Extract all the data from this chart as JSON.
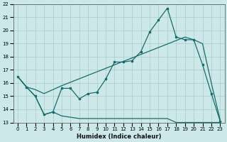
{
  "xlabel": "Humidex (Indice chaleur)",
  "bg_color": "#cce8e8",
  "grid_color": "#aacccc",
  "line_color": "#1a6b6b",
  "xlim": [
    -0.5,
    23.5
  ],
  "ylim": [
    13,
    22
  ],
  "xticks": [
    0,
    1,
    2,
    3,
    4,
    5,
    6,
    7,
    8,
    9,
    10,
    11,
    12,
    13,
    14,
    15,
    16,
    17,
    18,
    19,
    20,
    21,
    22,
    23
  ],
  "yticks": [
    13,
    14,
    15,
    16,
    17,
    18,
    19,
    20,
    21,
    22
  ],
  "line1_x": [
    0,
    1,
    2,
    3,
    4,
    5,
    6,
    7,
    8,
    9,
    10,
    11,
    12,
    13,
    14,
    15,
    16,
    17,
    18,
    19,
    20,
    21,
    22,
    23
  ],
  "line1_y": [
    16.5,
    15.7,
    15.0,
    13.6,
    13.8,
    15.6,
    15.6,
    14.8,
    15.2,
    15.3,
    16.3,
    17.6,
    17.6,
    17.7,
    18.4,
    19.9,
    20.8,
    21.7,
    19.5,
    19.3,
    19.3,
    17.4,
    15.2,
    13.1
  ],
  "line2_x": [
    0,
    1,
    2,
    3,
    4,
    5,
    19,
    20,
    21,
    22,
    23
  ],
  "line2_y": [
    16.5,
    15.7,
    15.5,
    15.2,
    15.5,
    15.8,
    19.5,
    19.3,
    19.0,
    16.0,
    13.2
  ],
  "line3_x": [
    0,
    1,
    2,
    3,
    4,
    5,
    6,
    7,
    8,
    9,
    10,
    11,
    12,
    13,
    14,
    15,
    16,
    17,
    18,
    19,
    20,
    21,
    22,
    23
  ],
  "line3_y": [
    16.5,
    15.7,
    15.0,
    13.6,
    13.8,
    13.5,
    13.4,
    13.3,
    13.3,
    13.3,
    13.3,
    13.3,
    13.3,
    13.3,
    13.3,
    13.3,
    13.3,
    13.3,
    13.0,
    13.0,
    13.0,
    13.0,
    13.0,
    13.0
  ]
}
